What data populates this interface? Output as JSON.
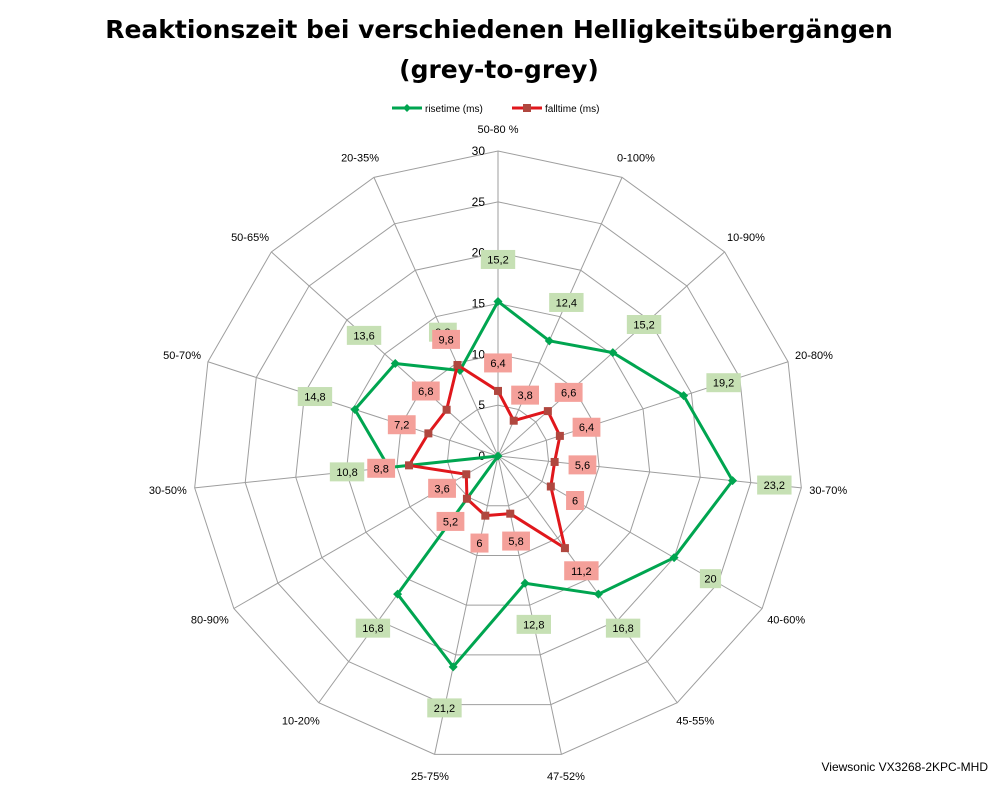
{
  "chart_data": {
    "type": "radar",
    "title": "Reaktionszeit bei verschiedenen Helligkeitsübergängen",
    "subtitle": "(grey-to-grey)",
    "categories": [
      "50-80 %",
      "0-100%",
      "10-90%",
      "20-80%",
      "30-70%",
      "40-60%",
      "45-55%",
      "47-52%",
      "25-75%",
      "10-20%",
      "80-90%",
      "30-50%",
      "50-70%",
      "50-65%",
      "20-35%"
    ],
    "series": [
      {
        "name": "risetime (ms)",
        "color": "#00a550",
        "label_bg": "#c6e0b4",
        "values": [
          15.2,
          12.4,
          15.2,
          19.2,
          23.2,
          20,
          16.8,
          12.8,
          21.2,
          16.8,
          0,
          10.8,
          14.8,
          13.6,
          9.2
        ]
      },
      {
        "name": "falltime (ms)",
        "color": "#e0171c",
        "label_bg": "#f4a09a",
        "values": [
          6.4,
          3.8,
          6.6,
          6.4,
          5.6,
          6,
          11.2,
          5.8,
          6,
          5.2,
          3.6,
          8.8,
          7.2,
          6.8,
          9.8
        ]
      }
    ],
    "value_labels": [
      [
        "15,2",
        "12,4",
        "15,2",
        "19,2",
        "23,2",
        "20",
        "16,8",
        "12,8",
        "21,2",
        "16,8",
        "",
        "10,8",
        "14,8",
        "13,6",
        "9,2"
      ],
      [
        "6,4",
        "3,8",
        "6,6",
        "6,4",
        "5,6",
        "6",
        "11,2",
        "5,8",
        "6",
        "5,2",
        "3,6",
        "8,8",
        "7,2",
        "6,8",
        "9,8"
      ]
    ],
    "r_ticks": [
      "0",
      "5",
      "10",
      "15",
      "20",
      "25",
      "30"
    ],
    "rlim": [
      0,
      30
    ],
    "legend_position": "top-center",
    "grid": true
  },
  "brand": "Viewsonic VX3268-2KPC-MHD"
}
